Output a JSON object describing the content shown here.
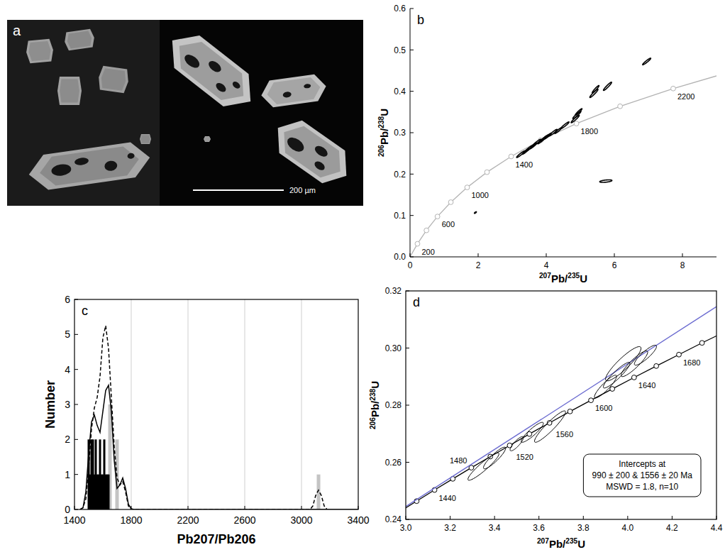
{
  "image": {
    "panel": "a",
    "scale_label": "200 µm"
  },
  "chart_data": [
    {
      "type": "concordia",
      "panel": "b",
      "x_label": "207Pb/235U",
      "y_label": "206Pb/238U",
      "xlim": [
        0,
        9
      ],
      "xticks": [
        0,
        2,
        4,
        6,
        8
      ],
      "ylim": [
        0,
        0.6
      ],
      "yticks": [
        {
          "value": 0,
          "label": "0.0"
        },
        0.1,
        0.2,
        0.3,
        0.4,
        0.5,
        0.6
      ],
      "grid": false,
      "series": [
        {
          "type": "line",
          "color": "#b3b3b3",
          "line_style": "solid",
          "x": [
            0,
            0.2177,
            0.4821,
            0.8056,
            1.1987,
            1.6774,
            2.2603,
            2.9703,
            3.8346,
            4.8868,
            6.1687,
            7.7287,
            9
          ],
          "values": [
            0,
            0.0315,
            0.064,
            0.0975,
            0.1321,
            0.1678,
            0.2046,
            0.2426,
            0.2817,
            0.3221,
            0.3638,
            0.4067,
            0.4372
          ]
        },
        {
          "type": "scatter",
          "marker": "circle",
          "color": "#b3b3b3",
          "x": [
            0.2177,
            0.4821,
            0.8056,
            1.1987,
            1.6774,
            2.2603,
            2.9703,
            3.8346,
            4.8868,
            6.1687,
            7.7287
          ],
          "values": [
            0.0315,
            0.064,
            0.0975,
            0.1321,
            0.1678,
            0.2046,
            0.2426,
            0.2817,
            0.3221,
            0.3638,
            0.4067
          ],
          "labels": [
            "200",
            null,
            "600",
            null,
            "1000",
            null,
            "1400",
            null,
            "1800",
            null,
            "2200"
          ]
        },
        {
          "type": "ellipse",
          "color": "#000000",
          "x": [
            1.92,
            3.25,
            3.4,
            3.5,
            3.62,
            3.72,
            3.85,
            3.95,
            4.05,
            4.2,
            4.35,
            4.55,
            4.85,
            4.9,
            4.95,
            5.4,
            5.45,
            5.8,
            5.75,
            6.95
          ],
          "values": [
            0.107,
            0.248,
            0.255,
            0.262,
            0.268,
            0.276,
            0.28,
            0.287,
            0.292,
            0.3,
            0.305,
            0.318,
            0.333,
            0.343,
            0.35,
            0.395,
            0.405,
            0.412,
            0.183,
            0.472
          ],
          "x_errors": [
            0.03,
            0.12,
            0.1,
            0.12,
            0.1,
            0.12,
            0.1,
            0.12,
            0.1,
            0.12,
            0.1,
            0.12,
            0.12,
            0.12,
            0.1,
            0.12,
            0.1,
            0.12,
            0.18,
            0.12
          ],
          "errors": [
            0.002,
            0.008,
            0.007,
            0.008,
            0.007,
            0.008,
            0.007,
            0.008,
            0.007,
            0.008,
            0.007,
            0.008,
            0.009,
            0.009,
            0.008,
            0.01,
            0.009,
            0.01,
            0.003,
            0.008
          ],
          "rho": [
            0.8,
            0.95,
            0.95,
            0.95,
            0.95,
            0.95,
            0.95,
            0.95,
            0.95,
            0.95,
            0.95,
            0.95,
            0.95,
            0.95,
            0.95,
            0.95,
            0.95,
            0.95,
            0.5,
            0.95
          ]
        }
      ]
    },
    {
      "type": "histogram",
      "panel": "c",
      "x_label": "Pb207/Pb206",
      "y_label": "Number",
      "xlim": [
        1400,
        3400
      ],
      "xticks": [
        1400,
        1800,
        2200,
        2600,
        3000,
        3400
      ],
      "ylim": [
        0,
        6
      ],
      "yticks": [
        0,
        1,
        2,
        3,
        4,
        5,
        6
      ],
      "grid": true,
      "series": [
        {
          "type": "bar",
          "color": "#c4c4c4",
          "x": [
            1650,
            1700,
            3120
          ],
          "values": [
            3,
            2,
            1
          ]
        },
        {
          "type": "bar",
          "color": "#000000",
          "x": [
            1500,
            1510,
            1520,
            1530,
            1540,
            1550,
            1560,
            1570,
            1580,
            1590,
            1600,
            1610,
            1620,
            1630,
            1640
          ],
          "values": [
            2,
            1,
            2,
            2,
            1,
            2,
            1,
            1,
            2,
            1,
            1,
            2,
            1,
            1,
            1
          ]
        },
        {
          "type": "line",
          "color": "#000000",
          "line_style": "dashed",
          "x": [
            1440,
            1460,
            1480,
            1500,
            1520,
            1540,
            1560,
            1580,
            1600,
            1620,
            1640,
            1660,
            1680,
            1700,
            1720,
            1740,
            1760,
            1780,
            1800,
            3060,
            3080,
            3100,
            3120,
            3140,
            3160,
            3180
          ],
          "values": [
            0,
            0.05,
            0.3,
            1.2,
            2.3,
            2.9,
            3.2,
            3.8,
            4.9,
            5.25,
            4.6,
            3.2,
            1.8,
            0.9,
            0.7,
            0.8,
            0.5,
            0.1,
            0,
            0,
            0.1,
            0.4,
            0.55,
            0.4,
            0.1,
            0
          ]
        },
        {
          "type": "line",
          "color": "#000000",
          "line_style": "solid",
          "x": [
            1440,
            1460,
            1480,
            1500,
            1520,
            1540,
            1560,
            1580,
            1600,
            1620,
            1640,
            1660,
            1680,
            1700,
            1720,
            1740,
            1760,
            1780,
            1800,
            1820,
            3400
          ],
          "values": [
            0,
            0.05,
            0.5,
            1.6,
            2.5,
            2.7,
            2.4,
            2.2,
            2.8,
            3.4,
            3.55,
            2.8,
            1.4,
            0.6,
            0.7,
            0.9,
            0.6,
            0.15,
            0.02,
            0,
            0
          ]
        }
      ]
    },
    {
      "type": "concordia",
      "panel": "d",
      "x_label": "207Pb/235U",
      "y_label": "206Pb/238U",
      "xlim": [
        3.0,
        4.4
      ],
      "xticks": [
        {
          "value": 3,
          "label": "3.0"
        },
        3.2,
        3.4,
        3.6,
        3.8,
        {
          "value": 4,
          "label": "4.0"
        },
        4.2,
        4.4
      ],
      "ylim": [
        0.24,
        0.32
      ],
      "yticks": [
        0.24,
        0.26,
        0.28,
        {
          "value": 0.3,
          "label": "0.30"
        },
        0.32
      ],
      "grid": false,
      "annotations": [
        "Intercepts at",
        "990 ± 200 & 1556 ± 20  Ma",
        "MSWD = 1.8, n=10"
      ],
      "series": [
        {
          "type": "line",
          "color": "#000000",
          "marker": "circle",
          "line_style": "solid",
          "x": [
            2.9701,
            3.0491,
            3.1296,
            3.2118,
            3.2955,
            3.381,
            3.4681,
            3.557,
            3.6477,
            3.7401,
            3.8344,
            3.9306,
            4.0287,
            4.1287,
            4.2307,
            4.3348,
            4.4409
          ],
          "values": [
            0.2426,
            0.2464,
            0.2503,
            0.2542,
            0.2581,
            0.262,
            0.2659,
            0.2699,
            0.2738,
            0.2778,
            0.2817,
            0.2857,
            0.2897,
            0.2937,
            0.2977,
            0.3018,
            0.3058
          ],
          "labels": [
            null,
            null,
            "1440",
            null,
            "1480",
            null,
            "1520",
            null,
            "1560",
            null,
            "1600",
            null,
            "1640",
            null,
            "1680",
            null,
            null
          ]
        },
        {
          "type": "line",
          "color": "#6b6bd0",
          "line_style": "solid",
          "x": [
            3.0,
            4.4
          ],
          "values": [
            0.2445,
            0.3145
          ]
        },
        {
          "type": "ellipse",
          "color": "#000000",
          "x": [
            3.35,
            3.4,
            3.5,
            3.57,
            3.65,
            3.9,
            3.95,
            3.98,
            4.03,
            4.08
          ],
          "values": [
            0.2585,
            0.2615,
            0.2665,
            0.2705,
            0.2725,
            0.2865,
            0.2905,
            0.2945,
            0.2945,
            0.2975
          ],
          "x_errors": [
            0.07,
            0.05,
            0.03,
            0.05,
            0.07,
            0.05,
            0.06,
            0.08,
            0.06,
            0.05
          ],
          "errors": [
            0.0048,
            0.0038,
            0.0025,
            0.0035,
            0.0055,
            0.004,
            0.0045,
            0.006,
            0.0045,
            0.0035
          ],
          "rho": [
            0.93,
            0.9,
            0.85,
            0.9,
            0.93,
            0.9,
            0.92,
            0.9,
            0.9,
            0.88
          ]
        }
      ]
    }
  ]
}
